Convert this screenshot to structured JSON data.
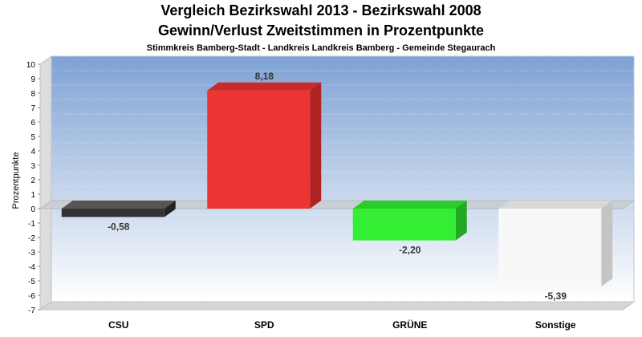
{
  "chart_data": {
    "type": "bar",
    "title": "Vergleich Bezirkswahl 2013 - Bezirkswahl 2008",
    "subtitle": "Gewinn/Verlust Zweitstimmen in Prozentpunkte",
    "caption": "Stimmkreis Bamberg-Stadt - Landkreis Landkreis Bamberg - Gemeinde Stegaurach",
    "ylabel": "Prozentpunkte",
    "xlabel": "",
    "ylim": [
      -7,
      10
    ],
    "yticks": [
      "10",
      "9",
      "8",
      "7",
      "6",
      "5",
      "4",
      "3",
      "2",
      "1",
      "0",
      "-1",
      "-2",
      "-3",
      "-4",
      "-5",
      "-6",
      "-7"
    ],
    "categories": [
      "CSU",
      "SPD",
      "GRÜNE",
      "Sonstige"
    ],
    "values": [
      -0.58,
      8.18,
      -2.2,
      -5.39
    ],
    "value_labels": [
      "-0,58",
      "8,18",
      "-2,20",
      "-5,39"
    ],
    "colors": [
      "#333333",
      "#ee3333",
      "#33ee33",
      "#f8f8f8"
    ],
    "side_colors": [
      "#222222",
      "#b02222",
      "#22a822",
      "#c4c4c4"
    ],
    "top_colors": [
      "#555555",
      "#cc2a2a",
      "#2acc2a",
      "#d8d8d8"
    ],
    "grid": true,
    "legend": "none"
  }
}
